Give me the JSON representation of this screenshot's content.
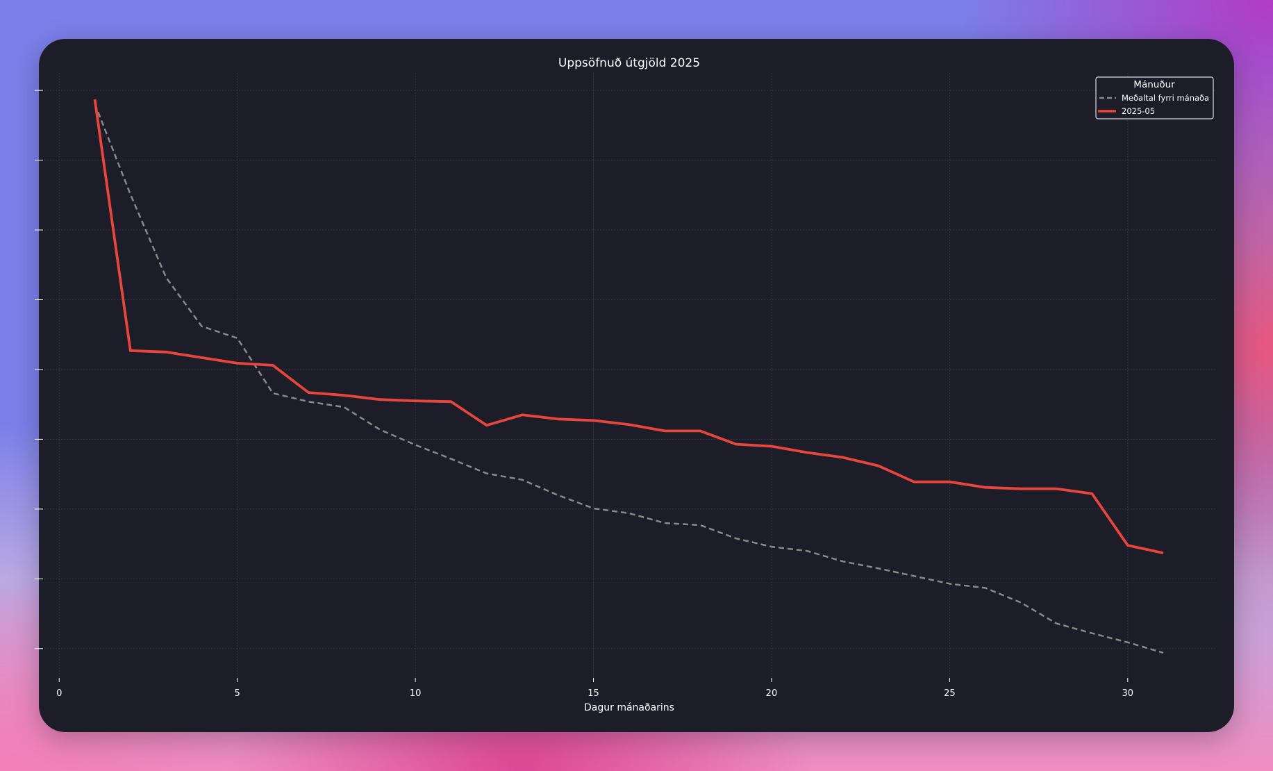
{
  "chart_data": {
    "type": "line",
    "title": "Uppsöfnuð útgjöld 2025",
    "xlabel": "Dagur mánaðarins",
    "ylabel": "",
    "xlim": [
      -0.57,
      32.48
    ],
    "ylim": [
      -0.42,
      8.25
    ],
    "xticks": [
      0,
      5,
      10,
      15,
      20,
      25,
      30
    ],
    "yticks": [
      0,
      1,
      2,
      3,
      4,
      5,
      6,
      7,
      8
    ],
    "ytick_labels_visible": false,
    "grid": true,
    "legend": {
      "title": "Mánuður",
      "placement": "top-right"
    },
    "x": [
      1,
      2,
      3,
      4,
      5,
      6,
      7,
      8,
      9,
      10,
      11,
      12,
      13,
      14,
      15,
      16,
      17,
      18,
      19,
      20,
      21,
      22,
      23,
      24,
      25,
      26,
      27,
      28,
      29,
      30,
      31
    ],
    "series": [
      {
        "name": "Meðaltal fyrri mánaða",
        "color": "#8a8a8a",
        "style": "dashed",
        "values": [
          7.81,
          6.51,
          5.32,
          4.62,
          4.45,
          3.66,
          3.54,
          3.46,
          3.14,
          2.92,
          2.72,
          2.51,
          2.42,
          2.2,
          2.01,
          1.94,
          1.8,
          1.77,
          1.58,
          1.46,
          1.4,
          1.25,
          1.15,
          1.04,
          0.93,
          0.87,
          0.66,
          0.36,
          0.22,
          0.09,
          -0.06
        ]
      },
      {
        "name": "2025-05",
        "color": "#e8453c",
        "style": "solid",
        "values": [
          7.87,
          4.27,
          4.25,
          4.17,
          4.09,
          4.06,
          3.67,
          3.63,
          3.57,
          3.55,
          3.54,
          3.2,
          3.35,
          3.29,
          3.27,
          3.21,
          3.12,
          3.12,
          2.93,
          2.9,
          2.81,
          2.74,
          2.62,
          2.39,
          2.39,
          2.31,
          2.29,
          2.29,
          2.22,
          1.48,
          1.37
        ]
      }
    ]
  }
}
